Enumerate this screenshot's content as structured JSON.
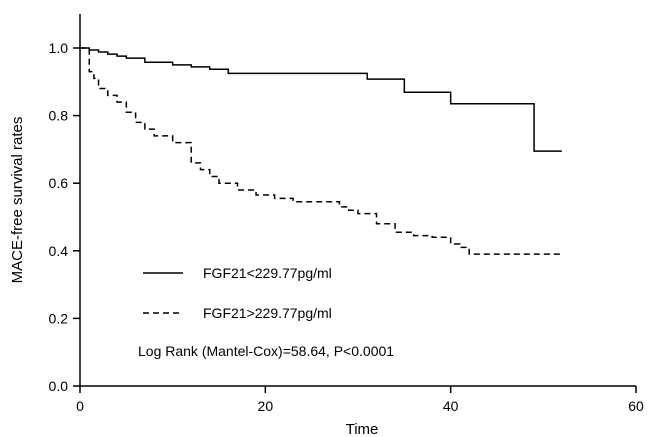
{
  "chart_data": {
    "type": "line",
    "chart_kind": "kaplan-meier step curves",
    "xlabel": "Time",
    "ylabel": "MACE-free survival rates",
    "xlim": [
      0,
      60
    ],
    "ylim": [
      0,
      1.0
    ],
    "x_ticks": [
      "0",
      "20",
      "40",
      "60"
    ],
    "y_ticks": [
      "0.0",
      "0.2",
      "0.4",
      "0.6",
      "0.8",
      "1.0"
    ],
    "x_tick_values": [
      0,
      20,
      40,
      60
    ],
    "y_tick_values": [
      0,
      0.2,
      0.4,
      0.6,
      0.8,
      1.0
    ],
    "grid": false,
    "legend_placement": "lower-left",
    "annotation": "Log Rank (Mantel-Cox)=58.64, P<0.0001",
    "series": [
      {
        "name": "FGF21<229.77pg/ml",
        "line_style": "solid",
        "color": "#000000",
        "x": [
          0,
          1,
          2,
          3,
          4,
          5,
          7,
          10,
          12,
          14,
          16,
          24,
          31,
          35,
          40,
          42,
          49,
          52
        ],
        "y": [
          1.0,
          0.994,
          0.988,
          0.982,
          0.976,
          0.97,
          0.958,
          0.95,
          0.944,
          0.937,
          0.925,
          0.925,
          0.908,
          0.869,
          0.835,
          0.835,
          0.695,
          0.695
        ]
      },
      {
        "name": "FGF21>229.77pg/ml",
        "line_style": "dashed",
        "color": "#000000",
        "x": [
          0,
          1,
          1.5,
          2,
          3,
          4,
          5,
          6,
          7,
          8,
          10,
          12,
          13,
          14,
          15,
          17,
          19,
          21,
          23,
          25,
          28,
          29,
          30,
          32,
          34,
          36,
          38,
          40,
          41,
          42,
          52
        ],
        "y": [
          1.0,
          0.93,
          0.91,
          0.88,
          0.86,
          0.84,
          0.81,
          0.78,
          0.76,
          0.74,
          0.72,
          0.66,
          0.64,
          0.62,
          0.6,
          0.58,
          0.565,
          0.555,
          0.545,
          0.545,
          0.53,
          0.52,
          0.51,
          0.48,
          0.455,
          0.445,
          0.44,
          0.42,
          0.41,
          0.39,
          0.39
        ]
      }
    ]
  }
}
